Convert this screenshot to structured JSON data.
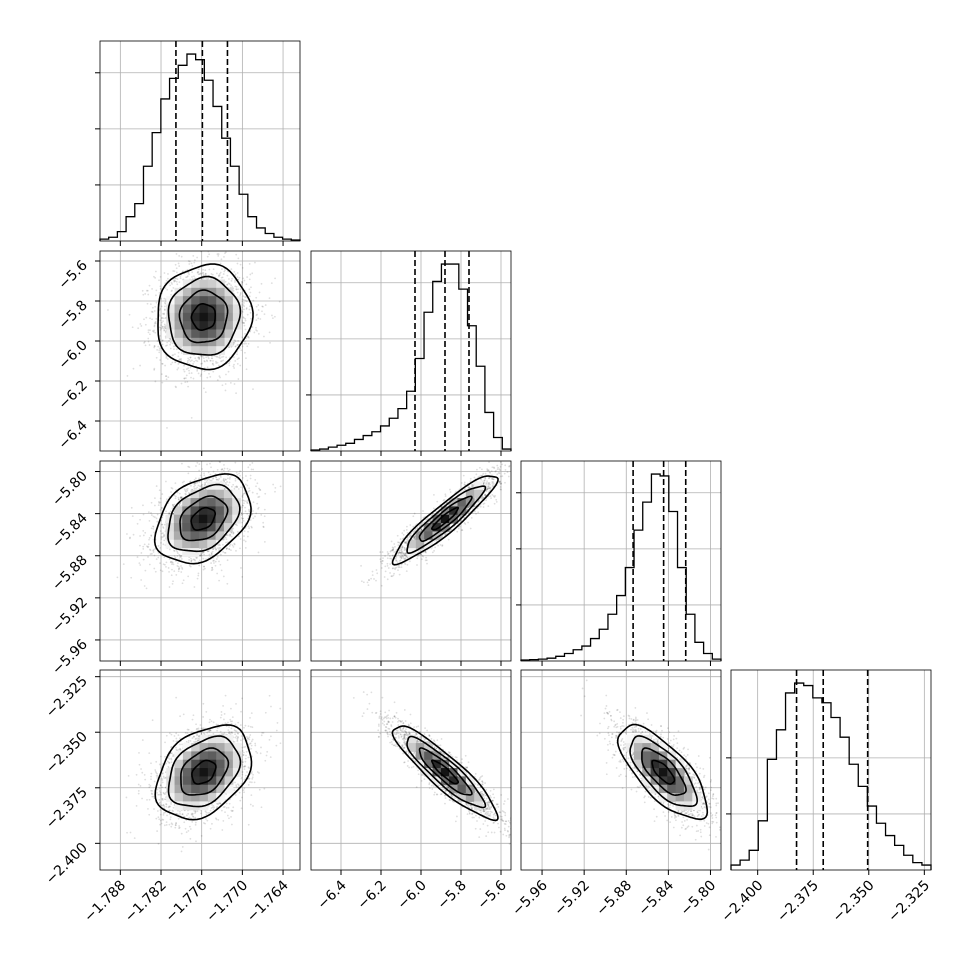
{
  "chart_data": {
    "type": "corner",
    "parameters": 4,
    "grid": true,
    "histograms": [
      {
        "param": 0,
        "range": [
          -1.791,
          -1.7615
        ],
        "quantiles": [
          -1.7798,
          -1.7759,
          -1.7722
        ],
        "yticks": [
          0.3,
          0.6,
          0.9
        ],
        "counts": [
          1,
          2,
          5,
          13,
          20,
          40,
          58,
          76,
          87,
          94,
          100,
          97,
          86,
          72,
          55,
          40,
          25,
          13,
          7,
          4,
          2,
          1,
          0.5
        ]
      },
      {
        "param": 1,
        "range": [
          -6.55,
          -5.55
        ],
        "quantiles": [
          -6.03,
          -5.88,
          -5.76
        ],
        "yticks": [
          0.3,
          0.6,
          0.9
        ],
        "counts": [
          0.5,
          1,
          2,
          3,
          4,
          6,
          8,
          10,
          13,
          17,
          22,
          31,
          48,
          72,
          88,
          97,
          97,
          84,
          65,
          44,
          20,
          7,
          1
        ]
      },
      {
        "param": 2,
        "range": [
          -5.98,
          -5.79
        ],
        "quantiles": [
          -5.8735,
          -5.8445,
          -5.8235
        ],
        "yticks": [
          0.3,
          0.6,
          0.9
        ],
        "counts": [
          0.5,
          0.7,
          1,
          1.5,
          2.5,
          4,
          6,
          8,
          12,
          17,
          25,
          35,
          50,
          70,
          85,
          100,
          99,
          80,
          50,
          25,
          10,
          4,
          1
        ]
      },
      {
        "param": 3,
        "range": [
          -2.412,
          -2.322
        ],
        "quantiles": [
          -2.3825,
          -2.3705,
          -2.3505
        ],
        "yticks": [
          0.3,
          0.6
        ],
        "counts": [
          2,
          4,
          8,
          20,
          45,
          57,
          72,
          76,
          75,
          70,
          68,
          62,
          54,
          43,
          34,
          26,
          19,
          14,
          10,
          6,
          3,
          2
        ]
      }
    ],
    "ranges": [
      [
        -1.791,
        -1.7615
      ],
      [
        -6.55,
        -5.55
      ],
      [
        -5.98,
        -5.79
      ],
      [
        -2.412,
        -2.322
      ]
    ],
    "ticks": [
      {
        "values": [
          -1.788,
          -1.782,
          -1.776,
          -1.77,
          -1.764
        ],
        "labels": [
          "−1.788",
          "−1.782",
          "−1.776",
          "−1.770",
          "−1.764"
        ]
      },
      {
        "values": [
          -6.4,
          -6.2,
          -6.0,
          -5.8,
          -5.6
        ],
        "labels": [
          "−6.4",
          "−6.2",
          "−6.0",
          "−5.8",
          "−5.6"
        ]
      },
      {
        "values": [
          -5.96,
          -5.92,
          -5.88,
          -5.84,
          -5.8
        ],
        "labels": [
          "−5.96",
          "−5.92",
          "−5.88",
          "−5.84",
          "−5.80"
        ]
      },
      {
        "values": [
          -2.4,
          -2.375,
          -2.35,
          -2.325
        ],
        "labels": [
          "−2.400",
          "−2.375",
          "−2.350",
          "−2.325"
        ]
      }
    ],
    "pairs": [
      {
        "row": 1,
        "col": 0,
        "center": [
          -1.7757,
          -5.88
        ],
        "sigma": [
          0.0035,
          0.13
        ],
        "rho": 0.05
      },
      {
        "row": 2,
        "col": 0,
        "center": [
          -1.7758,
          -5.845
        ],
        "sigma": [
          0.0035,
          0.021
        ],
        "rho": 0.35
      },
      {
        "row": 2,
        "col": 1,
        "center": [
          -5.88,
          -5.845
        ],
        "sigma": [
          0.13,
          0.021
        ],
        "rho": 0.92
      },
      {
        "row": 3,
        "col": 0,
        "center": [
          -1.7757,
          -2.368
        ],
        "sigma": [
          0.0035,
          0.0105
        ],
        "rho": 0.35
      },
      {
        "row": 3,
        "col": 1,
        "center": [
          -5.88,
          -2.368
        ],
        "sigma": [
          0.13,
          0.0105
        ],
        "rho": -0.9
      },
      {
        "row": 3,
        "col": 2,
        "center": [
          -5.845,
          -2.368
        ],
        "sigma": [
          0.021,
          0.0105
        ],
        "rho": -0.72
      }
    ],
    "contour_levels_sigma": [
      0.5,
      1.0,
      1.5,
      2.0
    ]
  }
}
